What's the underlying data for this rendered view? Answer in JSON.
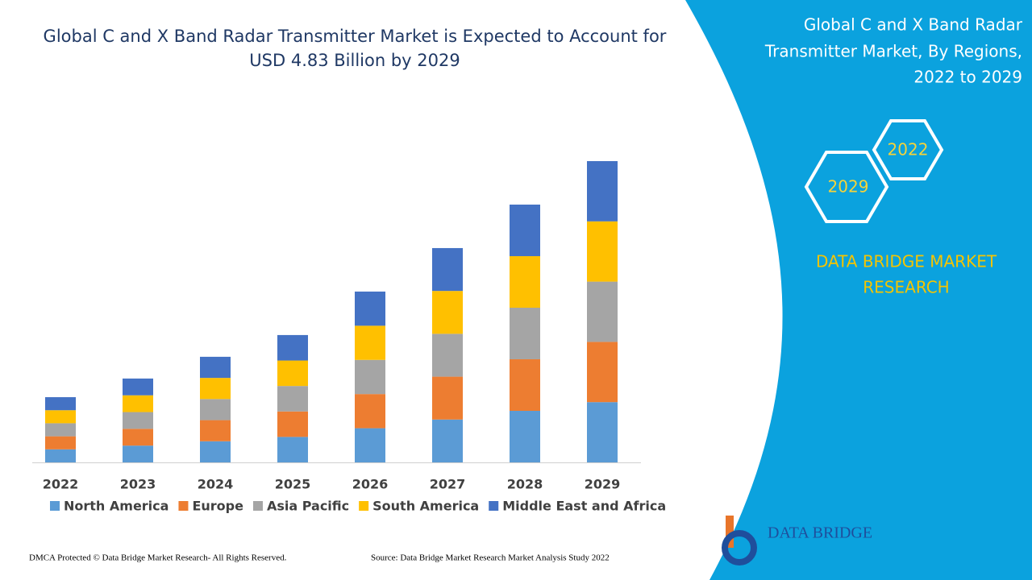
{
  "chart_data": {
    "type": "stacked-bar",
    "title": [
      "Global C and X Band Radar Transmitter Market is Expected to Account for",
      "USD 4.83 Billion by 2029"
    ],
    "categories": [
      "2022",
      "2023",
      "2024",
      "2025",
      "2026",
      "2027",
      "2028",
      "2029"
    ],
    "series": [
      {
        "name": "North America",
        "color": "#5b9bd5",
        "values": [
          0.21,
          0.27,
          0.34,
          0.41,
          0.55,
          0.69,
          0.83,
          0.97
        ]
      },
      {
        "name": "Europe",
        "color": "#ed7d31",
        "values": [
          0.21,
          0.27,
          0.34,
          0.41,
          0.55,
          0.69,
          0.83,
          0.97
        ]
      },
      {
        "name": "Asia Pacific",
        "color": "#a5a5a5",
        "values": [
          0.21,
          0.27,
          0.34,
          0.41,
          0.55,
          0.69,
          0.83,
          0.97
        ]
      },
      {
        "name": "South America",
        "color": "#ffc000",
        "values": [
          0.21,
          0.27,
          0.34,
          0.41,
          0.55,
          0.69,
          0.83,
          0.97
        ]
      },
      {
        "name": "Middle East and Africa",
        "color": "#4472c4",
        "values": [
          0.21,
          0.27,
          0.34,
          0.41,
          0.55,
          0.69,
          0.83,
          0.97
        ]
      }
    ]
  },
  "side_panel": {
    "title": [
      "Global C and X Band Radar",
      "Transmitter Market, By Regions,",
      "2022 to 2029"
    ],
    "hexagons": [
      "2022",
      "2029"
    ],
    "brand": [
      "DATA BRIDGE MARKET",
      "RESEARCH"
    ],
    "logo": "DATA BRIDGE"
  },
  "footer": {
    "left": "DMCA Protected © Data Bridge Market Research- All Rights Reserved.",
    "right": "Source: Data Bridge Market Research Market Analysis Study 2022"
  }
}
